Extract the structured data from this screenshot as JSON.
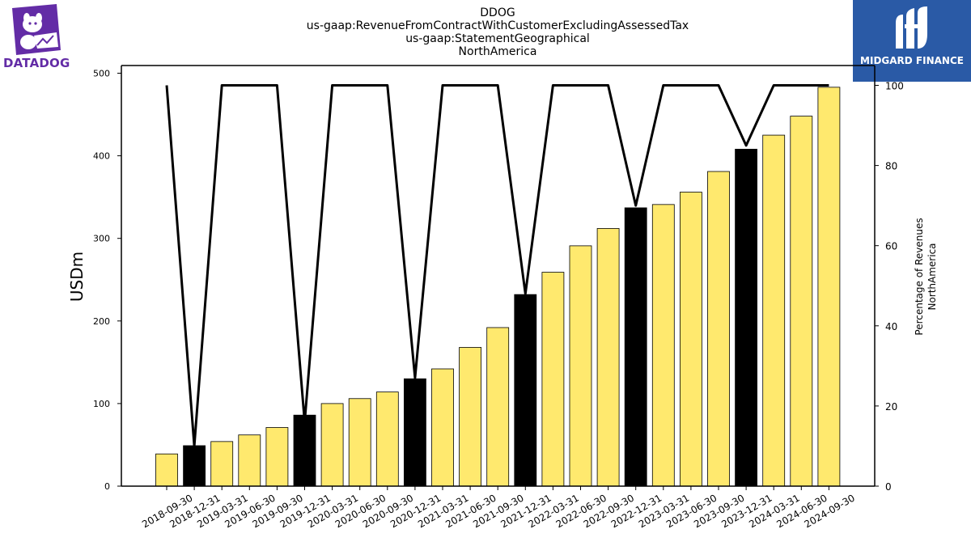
{
  "header": {
    "title_lines": [
      "DDOG",
      "us-gaap:RevenueFromContractWithCustomerExcludingAssessedTax",
      "us-gaap:StatementGeographical",
      "NorthAmerica"
    ]
  },
  "logos": {
    "left": {
      "text": "DATADOG",
      "icon": "datadog-dog-icon",
      "color": "#632ca6"
    },
    "right": {
      "text": "MIDGARD FINANCE",
      "icon": "midgard-m-icon",
      "background": "#2a5aa6"
    }
  },
  "chart_data": {
    "type": "bar",
    "categories": [
      "2018-09-30",
      "2018-12-31",
      "2019-03-31",
      "2019-06-30",
      "2019-09-30",
      "2019-12-31",
      "2020-03-31",
      "2020-06-30",
      "2020-09-30",
      "2020-12-31",
      "2021-03-31",
      "2021-06-30",
      "2021-09-30",
      "2021-12-31",
      "2022-03-31",
      "2022-06-30",
      "2022-09-30",
      "2022-12-31",
      "2023-03-31",
      "2023-06-30",
      "2023-09-30",
      "2023-12-31",
      "2024-03-31",
      "2024-06-30",
      "2024-09-30"
    ],
    "series": [
      {
        "type": "bar",
        "axis": "left",
        "values": [
          39,
          49,
          54,
          62,
          71,
          86,
          100,
          106,
          114,
          130,
          142,
          168,
          192,
          232,
          259,
          291,
          312,
          337,
          341,
          356,
          381,
          408,
          425,
          448,
          483
        ],
        "highlight_year_end": true
      },
      {
        "type": "line",
        "axis": "right",
        "values": [
          100,
          10,
          100,
          100,
          100,
          16,
          100,
          100,
          100,
          27,
          100,
          100,
          100,
          48,
          100,
          100,
          100,
          70,
          100,
          100,
          100,
          85,
          100,
          100,
          100
        ]
      }
    ],
    "ylabel": "USDm",
    "ylabel_right": [
      "Percentage of Revenues",
      "NorthAmerica"
    ],
    "ylim": [
      0,
      500
    ],
    "ylim_right": [
      0,
      100
    ],
    "yticks": [
      0,
      100,
      200,
      300,
      400,
      500
    ],
    "yticks_right": [
      0,
      20,
      40,
      60,
      80,
      100
    ],
    "colors": {
      "bar_default": "#ffe96e",
      "bar_highlight": "#000000",
      "line": "#000000"
    },
    "grid": false,
    "legend": false
  }
}
